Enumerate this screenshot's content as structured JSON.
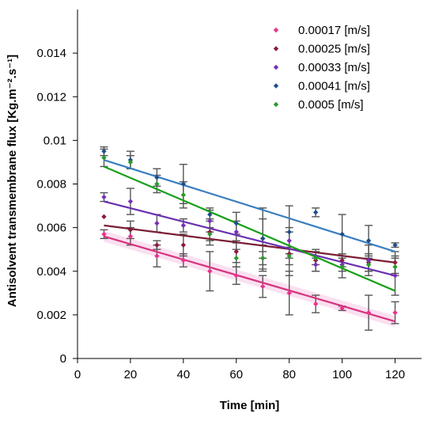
{
  "chart_data": {
    "type": "scatter",
    "xlabel": "Time [min]",
    "ylabel": "Antisolvent transmembrane flux [Kg.m⁻².s⁻¹]",
    "xlim": [
      0,
      130
    ],
    "ylim": [
      0,
      0.016
    ],
    "xticks": [
      0,
      20,
      40,
      60,
      80,
      100,
      120
    ],
    "yticks": [
      0,
      0.002,
      0.004,
      0.006,
      0.008,
      0.01,
      0.012,
      0.014
    ],
    "ytick_labels": [
      "0",
      "0.002",
      "0.004",
      "0.006",
      "0.008",
      "0.01",
      "0.012",
      "0.014"
    ],
    "grid": false,
    "legend_position": "top-right",
    "x": [
      10,
      20,
      30,
      40,
      50,
      60,
      70,
      80,
      90,
      100,
      110,
      120
    ],
    "series": [
      {
        "name": "0.00017 [m/s]",
        "color": "#e8338c",
        "line_color": "#d6337f",
        "values": [
          0.0057,
          0.0056,
          0.0047,
          0.0045,
          0.004,
          0.0038,
          0.0033,
          0.003,
          0.0025,
          0.0023,
          0.0021,
          0.0021
        ],
        "errors": [
          0.0002,
          0.0004,
          0.0005,
          0.0003,
          0.0009,
          0.0004,
          0.0005,
          0.001,
          0.0004,
          0.0001,
          0.0008,
          0.0005
        ],
        "trend": [
          0.0056,
          0.0017
        ]
      },
      {
        "name": "0.00025 [m/s]",
        "color": "#8b1a3c",
        "line_color": "#7b1e34",
        "values": [
          0.0065,
          0.0059,
          0.0052,
          0.0052,
          0.0058,
          0.0049,
          0.0055,
          0.0048,
          0.0045,
          0.0045,
          0.0044,
          0.0044
        ],
        "errors": [
          0.0,
          0.0004,
          0.0002,
          0.0005,
          0.0006,
          0.0005,
          0.0009,
          0.001,
          0.0005,
          0.0003,
          0.0004,
          0.0005
        ],
        "trend": [
          0.0061,
          0.0044
        ]
      },
      {
        "name": "0.00033 [m/s]",
        "color": "#7a2fb8",
        "line_color": "#6a30b0",
        "values": [
          0.0074,
          0.0072,
          0.0062,
          0.0061,
          0.0063,
          0.0058,
          0.0046,
          0.0054,
          0.0043,
          0.0043,
          0.0045,
          0.0038
        ],
        "errors": [
          0.0002,
          0.0006,
          0.0004,
          0.0003,
          0.0005,
          0.0005,
          0.0006,
          0.0006,
          0.0003,
          0.0003,
          0.0007,
          0.0009
        ],
        "trend": [
          0.0072,
          0.0038
        ]
      },
      {
        "name": "0.00041 [m/s]",
        "color": "#1f4e8c",
        "line_color": "#3a7fc0",
        "values": [
          0.0095,
          0.0091,
          0.0083,
          0.008,
          0.0066,
          0.0062,
          0.0055,
          0.0058,
          0.0067,
          0.0057,
          0.0054,
          0.0052
        ],
        "errors": [
          0.0002,
          0.0004,
          0.0004,
          0.0009,
          0.0003,
          0.0005,
          0.0014,
          0.0012,
          0.0002,
          0.0009,
          0.0007,
          0.0001
        ],
        "trend": [
          0.0091,
          0.0049
        ]
      },
      {
        "name": "0.0005 [m/s]",
        "color": "#2a9a2a",
        "line_color": "#18a018",
        "values": [
          0.0092,
          0.009,
          0.008,
          0.0075,
          0.0057,
          0.0046,
          0.0046,
          0.0047,
          0.0046,
          0.0042,
          0.0043,
          0.0042
        ],
        "errors": [
          0.0004,
          0.0003,
          0.0004,
          0.0006,
          0.0003,
          0.0004,
          0.0003,
          0.0004,
          0.0003,
          0.0005,
          0.0003,
          0.0004
        ],
        "trend": [
          0.0088,
          0.0031
        ]
      }
    ]
  }
}
